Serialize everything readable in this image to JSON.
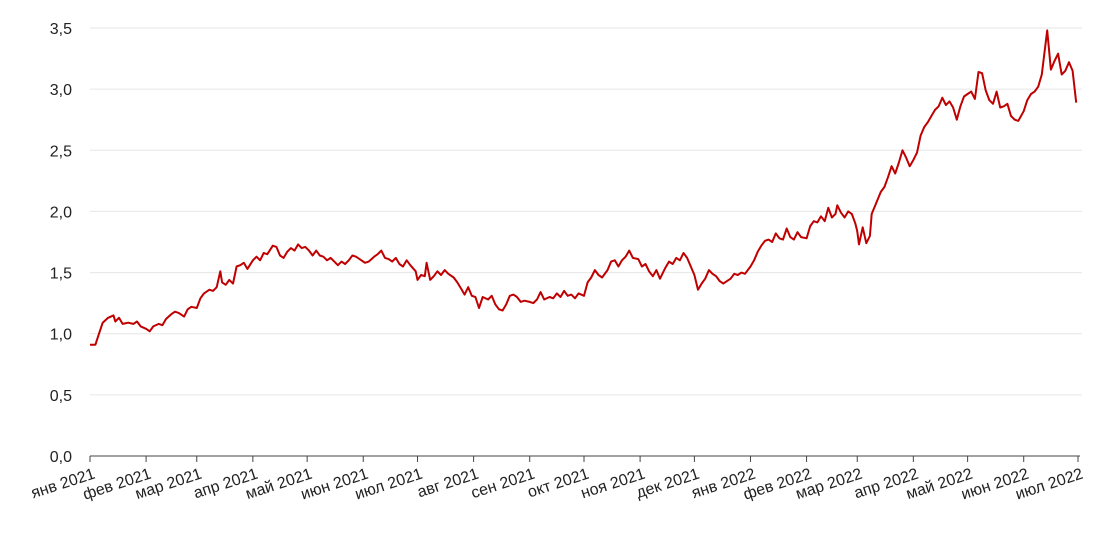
{
  "chart_data": {
    "type": "line",
    "title": "",
    "xlabel": "",
    "ylabel": "",
    "ylim": [
      0,
      3.5
    ],
    "yticks": [
      "0,0",
      "0,5",
      "1,0",
      "1,5",
      "2,0",
      "2,5",
      "3,0",
      "3,5"
    ],
    "ytick_values": [
      0,
      0.5,
      1.0,
      1.5,
      2.0,
      2.5,
      3.0,
      3.5
    ],
    "xlim": [
      "2021-01-01",
      "2022-07-01"
    ],
    "x_ticks": [
      {
        "label": "янв 2021",
        "date": "2021-01-01"
      },
      {
        "label": "фев 2021",
        "date": "2021-02-01"
      },
      {
        "label": "мар 2021",
        "date": "2021-03-01"
      },
      {
        "label": "апр 2021",
        "date": "2021-04-01"
      },
      {
        "label": "май 2021",
        "date": "2021-05-01"
      },
      {
        "label": "июн 2021",
        "date": "2021-06-01"
      },
      {
        "label": "июл 2021",
        "date": "2021-07-01"
      },
      {
        "label": "авг 2021",
        "date": "2021-08-01"
      },
      {
        "label": "сен 2021",
        "date": "2021-09-01"
      },
      {
        "label": "окт 2021",
        "date": "2021-10-01"
      },
      {
        "label": "ноя 2021",
        "date": "2021-11-01"
      },
      {
        "label": "дек 2021",
        "date": "2021-12-01"
      },
      {
        "label": "янв 2022",
        "date": "2022-01-01"
      },
      {
        "label": "фев 2022",
        "date": "2022-02-01"
      },
      {
        "label": "мар 2022",
        "date": "2022-03-01"
      },
      {
        "label": "апр 2022",
        "date": "2022-04-01"
      },
      {
        "label": "май 2022",
        "date": "2022-05-01"
      },
      {
        "label": "июн 2022",
        "date": "2022-06-01"
      },
      {
        "label": "июл 2022",
        "date": "2022-07-01"
      }
    ],
    "grid": true,
    "legend": "none",
    "series": [
      {
        "color": "#c00000",
        "points": [
          [
            "2021-01-01",
            0.91
          ],
          [
            "2021-01-04",
            0.91
          ],
          [
            "2021-01-06",
            1.0
          ],
          [
            "2021-01-08",
            1.09
          ],
          [
            "2021-01-11",
            1.13
          ],
          [
            "2021-01-14",
            1.15
          ],
          [
            "2021-01-15",
            1.1
          ],
          [
            "2021-01-17",
            1.13
          ],
          [
            "2021-01-19",
            1.08
          ],
          [
            "2021-01-22",
            1.09
          ],
          [
            "2021-01-25",
            1.08
          ],
          [
            "2021-01-27",
            1.1
          ],
          [
            "2021-01-29",
            1.06
          ],
          [
            "2021-02-01",
            1.04
          ],
          [
            "2021-02-03",
            1.02
          ],
          [
            "2021-02-05",
            1.06
          ],
          [
            "2021-02-08",
            1.08
          ],
          [
            "2021-02-10",
            1.07
          ],
          [
            "2021-02-12",
            1.12
          ],
          [
            "2021-02-15",
            1.16
          ],
          [
            "2021-02-17",
            1.18
          ],
          [
            "2021-02-19",
            1.17
          ],
          [
            "2021-02-22",
            1.14
          ],
          [
            "2021-02-24",
            1.2
          ],
          [
            "2021-02-26",
            1.22
          ],
          [
            "2021-03-01",
            1.21
          ],
          [
            "2021-03-03",
            1.29
          ],
          [
            "2021-03-05",
            1.33
          ],
          [
            "2021-03-08",
            1.36
          ],
          [
            "2021-03-10",
            1.35
          ],
          [
            "2021-03-12",
            1.38
          ],
          [
            "2021-03-14",
            1.51
          ],
          [
            "2021-03-15",
            1.42
          ],
          [
            "2021-03-17",
            1.4
          ],
          [
            "2021-03-19",
            1.44
          ],
          [
            "2021-03-21",
            1.41
          ],
          [
            "2021-03-23",
            1.55
          ],
          [
            "2021-03-25",
            1.56
          ],
          [
            "2021-03-27",
            1.58
          ],
          [
            "2021-03-29",
            1.53
          ],
          [
            "2021-04-01",
            1.6
          ],
          [
            "2021-04-03",
            1.63
          ],
          [
            "2021-04-05",
            1.6
          ],
          [
            "2021-04-07",
            1.66
          ],
          [
            "2021-04-09",
            1.65
          ],
          [
            "2021-04-12",
            1.72
          ],
          [
            "2021-04-14",
            1.71
          ],
          [
            "2021-04-16",
            1.64
          ],
          [
            "2021-04-18",
            1.62
          ],
          [
            "2021-04-20",
            1.67
          ],
          [
            "2021-04-22",
            1.7
          ],
          [
            "2021-04-24",
            1.68
          ],
          [
            "2021-04-26",
            1.73
          ],
          [
            "2021-04-28",
            1.7
          ],
          [
            "2021-04-30",
            1.71
          ],
          [
            "2021-05-02",
            1.68
          ],
          [
            "2021-05-04",
            1.64
          ],
          [
            "2021-05-06",
            1.68
          ],
          [
            "2021-05-08",
            1.64
          ],
          [
            "2021-05-10",
            1.63
          ],
          [
            "2021-05-12",
            1.6
          ],
          [
            "2021-05-14",
            1.62
          ],
          [
            "2021-05-16",
            1.59
          ],
          [
            "2021-05-18",
            1.56
          ],
          [
            "2021-05-20",
            1.59
          ],
          [
            "2021-05-22",
            1.57
          ],
          [
            "2021-05-24",
            1.6
          ],
          [
            "2021-05-26",
            1.64
          ],
          [
            "2021-05-28",
            1.63
          ],
          [
            "2021-05-31",
            1.6
          ],
          [
            "2021-06-02",
            1.58
          ],
          [
            "2021-06-04",
            1.59
          ],
          [
            "2021-06-07",
            1.63
          ],
          [
            "2021-06-09",
            1.65
          ],
          [
            "2021-06-11",
            1.68
          ],
          [
            "2021-06-13",
            1.62
          ],
          [
            "2021-06-15",
            1.61
          ],
          [
            "2021-06-17",
            1.59
          ],
          [
            "2021-06-19",
            1.62
          ],
          [
            "2021-06-21",
            1.57
          ],
          [
            "2021-06-23",
            1.55
          ],
          [
            "2021-06-25",
            1.6
          ],
          [
            "2021-06-27",
            1.56
          ],
          [
            "2021-06-30",
            1.51
          ],
          [
            "2021-07-01",
            1.44
          ],
          [
            "2021-07-03",
            1.48
          ],
          [
            "2021-07-05",
            1.47
          ],
          [
            "2021-07-06",
            1.58
          ],
          [
            "2021-07-08",
            1.44
          ],
          [
            "2021-07-10",
            1.47
          ],
          [
            "2021-07-12",
            1.51
          ],
          [
            "2021-07-14",
            1.48
          ],
          [
            "2021-07-16",
            1.52
          ],
          [
            "2021-07-18",
            1.49
          ],
          [
            "2021-07-21",
            1.46
          ],
          [
            "2021-07-23",
            1.42
          ],
          [
            "2021-07-25",
            1.37
          ],
          [
            "2021-07-27",
            1.32
          ],
          [
            "2021-07-29",
            1.38
          ],
          [
            "2021-07-31",
            1.31
          ],
          [
            "2021-08-02",
            1.3
          ],
          [
            "2021-08-04",
            1.21
          ],
          [
            "2021-08-06",
            1.3
          ],
          [
            "2021-08-09",
            1.28
          ],
          [
            "2021-08-11",
            1.31
          ],
          [
            "2021-08-13",
            1.24
          ],
          [
            "2021-08-15",
            1.2
          ],
          [
            "2021-08-17",
            1.19
          ],
          [
            "2021-08-19",
            1.24
          ],
          [
            "2021-08-21",
            1.31
          ],
          [
            "2021-08-23",
            1.32
          ],
          [
            "2021-08-25",
            1.3
          ],
          [
            "2021-08-27",
            1.26
          ],
          [
            "2021-08-29",
            1.27
          ],
          [
            "2021-09-01",
            1.26
          ],
          [
            "2021-09-03",
            1.25
          ],
          [
            "2021-09-05",
            1.28
          ],
          [
            "2021-09-07",
            1.34
          ],
          [
            "2021-09-09",
            1.28
          ],
          [
            "2021-09-12",
            1.3
          ],
          [
            "2021-09-14",
            1.29
          ],
          [
            "2021-09-16",
            1.33
          ],
          [
            "2021-09-18",
            1.3
          ],
          [
            "2021-09-20",
            1.35
          ],
          [
            "2021-09-22",
            1.31
          ],
          [
            "2021-09-24",
            1.32
          ],
          [
            "2021-09-26",
            1.29
          ],
          [
            "2021-09-28",
            1.33
          ],
          [
            "2021-10-01",
            1.31
          ],
          [
            "2021-10-03",
            1.42
          ],
          [
            "2021-10-05",
            1.46
          ],
          [
            "2021-10-07",
            1.52
          ],
          [
            "2021-10-09",
            1.48
          ],
          [
            "2021-10-11",
            1.46
          ],
          [
            "2021-10-14",
            1.52
          ],
          [
            "2021-10-16",
            1.59
          ],
          [
            "2021-10-18",
            1.6
          ],
          [
            "2021-10-20",
            1.55
          ],
          [
            "2021-10-22",
            1.6
          ],
          [
            "2021-10-24",
            1.63
          ],
          [
            "2021-10-26",
            1.68
          ],
          [
            "2021-10-28",
            1.62
          ],
          [
            "2021-10-31",
            1.61
          ],
          [
            "2021-11-02",
            1.55
          ],
          [
            "2021-11-04",
            1.57
          ],
          [
            "2021-11-06",
            1.51
          ],
          [
            "2021-11-08",
            1.47
          ],
          [
            "2021-11-10",
            1.52
          ],
          [
            "2021-11-12",
            1.45
          ],
          [
            "2021-11-15",
            1.54
          ],
          [
            "2021-11-17",
            1.59
          ],
          [
            "2021-11-19",
            1.57
          ],
          [
            "2021-11-21",
            1.62
          ],
          [
            "2021-11-23",
            1.6
          ],
          [
            "2021-11-25",
            1.66
          ],
          [
            "2021-11-27",
            1.62
          ],
          [
            "2021-11-29",
            1.55
          ],
          [
            "2021-12-01",
            1.48
          ],
          [
            "2021-12-03",
            1.36
          ],
          [
            "2021-12-05",
            1.41
          ],
          [
            "2021-12-07",
            1.45
          ],
          [
            "2021-12-09",
            1.52
          ],
          [
            "2021-12-11",
            1.49
          ],
          [
            "2021-12-13",
            1.47
          ],
          [
            "2021-12-15",
            1.43
          ],
          [
            "2021-12-17",
            1.41
          ],
          [
            "2021-12-19",
            1.43
          ],
          [
            "2021-12-21",
            1.45
          ],
          [
            "2021-12-23",
            1.49
          ],
          [
            "2021-12-25",
            1.48
          ],
          [
            "2021-12-27",
            1.5
          ],
          [
            "2021-12-29",
            1.49
          ],
          [
            "2022-01-01",
            1.55
          ],
          [
            "2022-01-03",
            1.6
          ],
          [
            "2022-01-05",
            1.67
          ],
          [
            "2022-01-07",
            1.72
          ],
          [
            "2022-01-09",
            1.76
          ],
          [
            "2022-01-11",
            1.77
          ],
          [
            "2022-01-13",
            1.75
          ],
          [
            "2022-01-15",
            1.82
          ],
          [
            "2022-01-17",
            1.78
          ],
          [
            "2022-01-19",
            1.77
          ],
          [
            "2022-01-21",
            1.86
          ],
          [
            "2022-01-23",
            1.79
          ],
          [
            "2022-01-25",
            1.77
          ],
          [
            "2022-01-27",
            1.83
          ],
          [
            "2022-01-29",
            1.79
          ],
          [
            "2022-02-01",
            1.78
          ],
          [
            "2022-02-03",
            1.88
          ],
          [
            "2022-02-05",
            1.92
          ],
          [
            "2022-02-07",
            1.91
          ],
          [
            "2022-02-09",
            1.96
          ],
          [
            "2022-02-11",
            1.92
          ],
          [
            "2022-02-13",
            2.03
          ],
          [
            "2022-02-15",
            1.95
          ],
          [
            "2022-02-17",
            1.98
          ],
          [
            "2022-02-18",
            2.05
          ],
          [
            "2022-02-20",
            1.99
          ],
          [
            "2022-02-22",
            1.95
          ],
          [
            "2022-02-24",
            2.0
          ],
          [
            "2022-02-26",
            1.98
          ],
          [
            "2022-02-28",
            1.9
          ],
          [
            "2022-03-01",
            1.84
          ],
          [
            "2022-03-02",
            1.73
          ],
          [
            "2022-03-04",
            1.87
          ],
          [
            "2022-03-06",
            1.74
          ],
          [
            "2022-03-08",
            1.8
          ],
          [
            "2022-03-09",
            1.98
          ],
          [
            "2022-03-11",
            2.05
          ],
          [
            "2022-03-14",
            2.16
          ],
          [
            "2022-03-16",
            2.2
          ],
          [
            "2022-03-18",
            2.28
          ],
          [
            "2022-03-20",
            2.37
          ],
          [
            "2022-03-22",
            2.31
          ],
          [
            "2022-03-24",
            2.4
          ],
          [
            "2022-03-26",
            2.5
          ],
          [
            "2022-03-28",
            2.44
          ],
          [
            "2022-03-30",
            2.37
          ],
          [
            "2022-04-01",
            2.42
          ],
          [
            "2022-04-03",
            2.48
          ],
          [
            "2022-04-05",
            2.62
          ],
          [
            "2022-04-07",
            2.69
          ],
          [
            "2022-04-09",
            2.73
          ],
          [
            "2022-04-11",
            2.78
          ],
          [
            "2022-04-13",
            2.83
          ],
          [
            "2022-04-15",
            2.86
          ],
          [
            "2022-04-17",
            2.93
          ],
          [
            "2022-04-19",
            2.87
          ],
          [
            "2022-04-21",
            2.9
          ],
          [
            "2022-04-23",
            2.85
          ],
          [
            "2022-04-25",
            2.75
          ],
          [
            "2022-04-27",
            2.86
          ],
          [
            "2022-04-29",
            2.94
          ],
          [
            "2022-05-01",
            2.96
          ],
          [
            "2022-05-03",
            2.98
          ],
          [
            "2022-05-05",
            2.92
          ],
          [
            "2022-05-07",
            3.14
          ],
          [
            "2022-05-09",
            3.13
          ],
          [
            "2022-05-11",
            2.99
          ],
          [
            "2022-05-13",
            2.91
          ],
          [
            "2022-05-15",
            2.88
          ],
          [
            "2022-05-17",
            2.98
          ],
          [
            "2022-05-19",
            2.85
          ],
          [
            "2022-05-21",
            2.86
          ],
          [
            "2022-05-23",
            2.88
          ],
          [
            "2022-05-25",
            2.78
          ],
          [
            "2022-05-27",
            2.75
          ],
          [
            "2022-05-29",
            2.74
          ],
          [
            "2022-06-01",
            2.82
          ],
          [
            "2022-06-03",
            2.91
          ],
          [
            "2022-06-05",
            2.96
          ],
          [
            "2022-06-07",
            2.98
          ],
          [
            "2022-06-09",
            3.02
          ],
          [
            "2022-06-11",
            3.12
          ],
          [
            "2022-06-14",
            3.48
          ],
          [
            "2022-06-16",
            3.16
          ],
          [
            "2022-06-18",
            3.23
          ],
          [
            "2022-06-20",
            3.29
          ],
          [
            "2022-06-22",
            3.12
          ],
          [
            "2022-06-24",
            3.15
          ],
          [
            "2022-06-26",
            3.22
          ],
          [
            "2022-06-28",
            3.15
          ],
          [
            "2022-06-30",
            2.89
          ]
        ]
      }
    ]
  }
}
